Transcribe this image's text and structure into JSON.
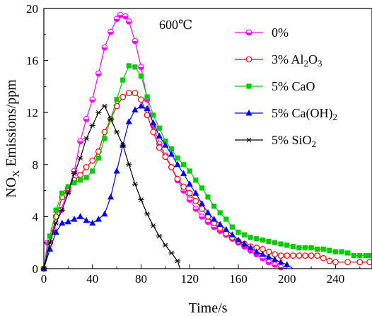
{
  "chart_data": {
    "type": "line",
    "title": "",
    "annotation": "600℃",
    "xlabel": "Time/s",
    "ylabel_main": "NO",
    "ylabel_sub": "X",
    "ylabel_rest": " Emissions/ppm",
    "xlim": [
      0,
      270
    ],
    "ylim": [
      0,
      20
    ],
    "x_ticks": [
      0,
      40,
      80,
      120,
      160,
      200,
      240
    ],
    "y_ticks": [
      0,
      4,
      8,
      12,
      16,
      20
    ],
    "legend_position": "top-right",
    "series": [
      {
        "name": "0%",
        "name_parts": [
          {
            "t": "0%"
          }
        ],
        "color": "#ff00ff",
        "marker": "half-circle",
        "points": [
          [
            0,
            0
          ],
          [
            3,
            2
          ],
          [
            8,
            3
          ],
          [
            14,
            4.5
          ],
          [
            20,
            6
          ],
          [
            25,
            7.5
          ],
          [
            30,
            9.8
          ],
          [
            35,
            11.5
          ],
          [
            40,
            13
          ],
          [
            45,
            15
          ],
          [
            50,
            17
          ],
          [
            55,
            18.2
          ],
          [
            60,
            19.2
          ],
          [
            63,
            19.5
          ],
          [
            67,
            19.4
          ],
          [
            70,
            19
          ],
          [
            75,
            17.5
          ],
          [
            80,
            15.5
          ],
          [
            85,
            13
          ],
          [
            90,
            11
          ],
          [
            95,
            9.6
          ],
          [
            100,
            8.7
          ],
          [
            105,
            7.8
          ],
          [
            110,
            6.8
          ],
          [
            115,
            6
          ],
          [
            120,
            5.3
          ],
          [
            125,
            4.6
          ],
          [
            130,
            4
          ],
          [
            135,
            3.6
          ],
          [
            140,
            3.2
          ],
          [
            145,
            2.9
          ],
          [
            150,
            2.6
          ],
          [
            155,
            2.3
          ],
          [
            160,
            2
          ],
          [
            165,
            1.7
          ],
          [
            170,
            1.4
          ],
          [
            175,
            1.1
          ],
          [
            180,
            0.8
          ],
          [
            185,
            0.5
          ],
          [
            190,
            0.3
          ],
          [
            195,
            0.1
          ],
          [
            200,
            0
          ]
        ]
      },
      {
        "name": "3% Al2O3",
        "name_parts": [
          {
            "t": "3%  Al"
          },
          {
            "t": "2",
            "sub": true
          },
          {
            "t": "O"
          },
          {
            "t": "3",
            "sub": true
          }
        ],
        "color": "#ff0000",
        "marker": "open-circle",
        "points": [
          [
            0,
            0
          ],
          [
            5,
            2
          ],
          [
            10,
            4
          ],
          [
            15,
            5.5
          ],
          [
            20,
            6.2
          ],
          [
            25,
            6.8
          ],
          [
            30,
            7.2
          ],
          [
            35,
            7.8
          ],
          [
            40,
            8.3
          ],
          [
            45,
            9
          ],
          [
            50,
            10.5
          ],
          [
            55,
            11.5
          ],
          [
            60,
            12.5
          ],
          [
            65,
            13.2
          ],
          [
            70,
            13.5
          ],
          [
            75,
            13.5
          ],
          [
            80,
            13
          ],
          [
            85,
            11.8
          ],
          [
            90,
            10.5
          ],
          [
            95,
            9.3
          ],
          [
            100,
            8.6
          ],
          [
            105,
            7.8
          ],
          [
            110,
            6.9
          ],
          [
            115,
            6.3
          ],
          [
            120,
            5.8
          ],
          [
            125,
            5.2
          ],
          [
            130,
            4.6
          ],
          [
            135,
            4
          ],
          [
            140,
            3.5
          ],
          [
            145,
            3.1
          ],
          [
            150,
            2.7
          ],
          [
            155,
            2.4
          ],
          [
            160,
            2.1
          ],
          [
            165,
            1.9
          ],
          [
            170,
            1.7
          ],
          [
            175,
            1.6
          ],
          [
            180,
            1.5
          ],
          [
            185,
            1.3
          ],
          [
            190,
            1.1
          ],
          [
            195,
            1
          ],
          [
            200,
            1
          ],
          [
            205,
            1
          ],
          [
            210,
            1
          ],
          [
            215,
            1
          ],
          [
            220,
            1
          ],
          [
            225,
            1
          ],
          [
            230,
            0.8
          ],
          [
            235,
            0.6
          ],
          [
            240,
            0.5
          ],
          [
            250,
            0.5
          ],
          [
            260,
            0.5
          ],
          [
            268,
            0.5
          ]
        ]
      },
      {
        "name": "5% CaO",
        "name_parts": [
          {
            "t": "5%  CaO"
          }
        ],
        "color": "#00cc00",
        "marker": "filled-square",
        "points": [
          [
            0,
            0
          ],
          [
            5,
            2.5
          ],
          [
            10,
            4.5
          ],
          [
            15,
            5.8
          ],
          [
            20,
            6.3
          ],
          [
            25,
            6.6
          ],
          [
            30,
            6.8
          ],
          [
            35,
            7
          ],
          [
            40,
            7.5
          ],
          [
            45,
            8.5
          ],
          [
            50,
            10
          ],
          [
            55,
            11.5
          ],
          [
            60,
            13
          ],
          [
            65,
            14.5
          ],
          [
            70,
            15.6
          ],
          [
            75,
            15.5
          ],
          [
            80,
            14.8
          ],
          [
            85,
            13.2
          ],
          [
            90,
            11.8
          ],
          [
            95,
            10.8
          ],
          [
            100,
            9.8
          ],
          [
            105,
            9.2
          ],
          [
            110,
            8.5
          ],
          [
            115,
            8
          ],
          [
            120,
            7.5
          ],
          [
            125,
            6.8
          ],
          [
            130,
            6.2
          ],
          [
            135,
            5.5
          ],
          [
            140,
            4.8
          ],
          [
            145,
            4.3
          ],
          [
            150,
            3.8
          ],
          [
            155,
            3.2
          ],
          [
            160,
            2.8
          ],
          [
            165,
            2.6
          ],
          [
            170,
            2.4
          ],
          [
            175,
            2.3
          ],
          [
            180,
            2.2
          ],
          [
            185,
            2.1
          ],
          [
            190,
            2
          ],
          [
            195,
            1.9
          ],
          [
            200,
            1.8
          ],
          [
            205,
            1.7
          ],
          [
            210,
            1.6
          ],
          [
            215,
            1.6
          ],
          [
            220,
            1.6
          ],
          [
            225,
            1.5
          ],
          [
            230,
            1.5
          ],
          [
            235,
            1.4
          ],
          [
            240,
            1.3
          ],
          [
            245,
            1.3
          ],
          [
            250,
            1.2
          ],
          [
            255,
            1
          ],
          [
            260,
            1
          ],
          [
            265,
            1
          ],
          [
            268,
            1
          ]
        ]
      },
      {
        "name": "5% Ca(OH)2",
        "name_parts": [
          {
            "t": "5%  Ca(OH)"
          },
          {
            "t": "2",
            "sub": true
          }
        ],
        "color": "#0000ff",
        "marker": "filled-triangle",
        "points": [
          [
            0,
            0
          ],
          [
            5,
            1.5
          ],
          [
            10,
            2.8
          ],
          [
            15,
            3.5
          ],
          [
            20,
            3.6
          ],
          [
            25,
            3.8
          ],
          [
            30,
            4
          ],
          [
            35,
            3.7
          ],
          [
            40,
            3.5
          ],
          [
            45,
            3.8
          ],
          [
            50,
            4.2
          ],
          [
            55,
            5.5
          ],
          [
            60,
            7.5
          ],
          [
            65,
            9.5
          ],
          [
            70,
            11.3
          ],
          [
            75,
            12.2
          ],
          [
            80,
            12.5
          ],
          [
            85,
            12.3
          ],
          [
            90,
            11.2
          ],
          [
            95,
            10.2
          ],
          [
            100,
            9.5
          ],
          [
            105,
            8.8
          ],
          [
            110,
            8
          ],
          [
            115,
            7.3
          ],
          [
            120,
            6.5
          ],
          [
            125,
            5.8
          ],
          [
            130,
            5
          ],
          [
            135,
            4.3
          ],
          [
            140,
            3.8
          ],
          [
            145,
            3.4
          ],
          [
            150,
            3
          ],
          [
            155,
            2.6
          ],
          [
            160,
            2.2
          ],
          [
            165,
            1.9
          ],
          [
            170,
            1.6
          ],
          [
            175,
            1.3
          ],
          [
            180,
            1.1
          ],
          [
            185,
            0.9
          ],
          [
            190,
            0.7
          ],
          [
            195,
            0.5
          ],
          [
            200,
            0.3
          ],
          [
            205,
            0
          ]
        ]
      },
      {
        "name": "5% SiO2",
        "name_parts": [
          {
            "t": "5%  SiO"
          },
          {
            "t": "2",
            "sub": true
          }
        ],
        "color": "#000000",
        "marker": "asterisk",
        "points": [
          [
            0,
            0
          ],
          [
            5,
            2
          ],
          [
            10,
            3.5
          ],
          [
            15,
            4.5
          ],
          [
            20,
            5.8
          ],
          [
            25,
            7.3
          ],
          [
            30,
            8.5
          ],
          [
            35,
            10
          ],
          [
            40,
            11
          ],
          [
            45,
            12
          ],
          [
            50,
            12.5
          ],
          [
            55,
            11.5
          ],
          [
            60,
            10.5
          ],
          [
            65,
            9.5
          ],
          [
            70,
            8
          ],
          [
            75,
            6.5
          ],
          [
            80,
            5.3
          ],
          [
            85,
            4.2
          ],
          [
            90,
            3.3
          ],
          [
            95,
            2.5
          ],
          [
            100,
            1.8
          ],
          [
            105,
            1.2
          ],
          [
            110,
            0.6
          ],
          [
            112,
            0
          ]
        ]
      }
    ]
  }
}
